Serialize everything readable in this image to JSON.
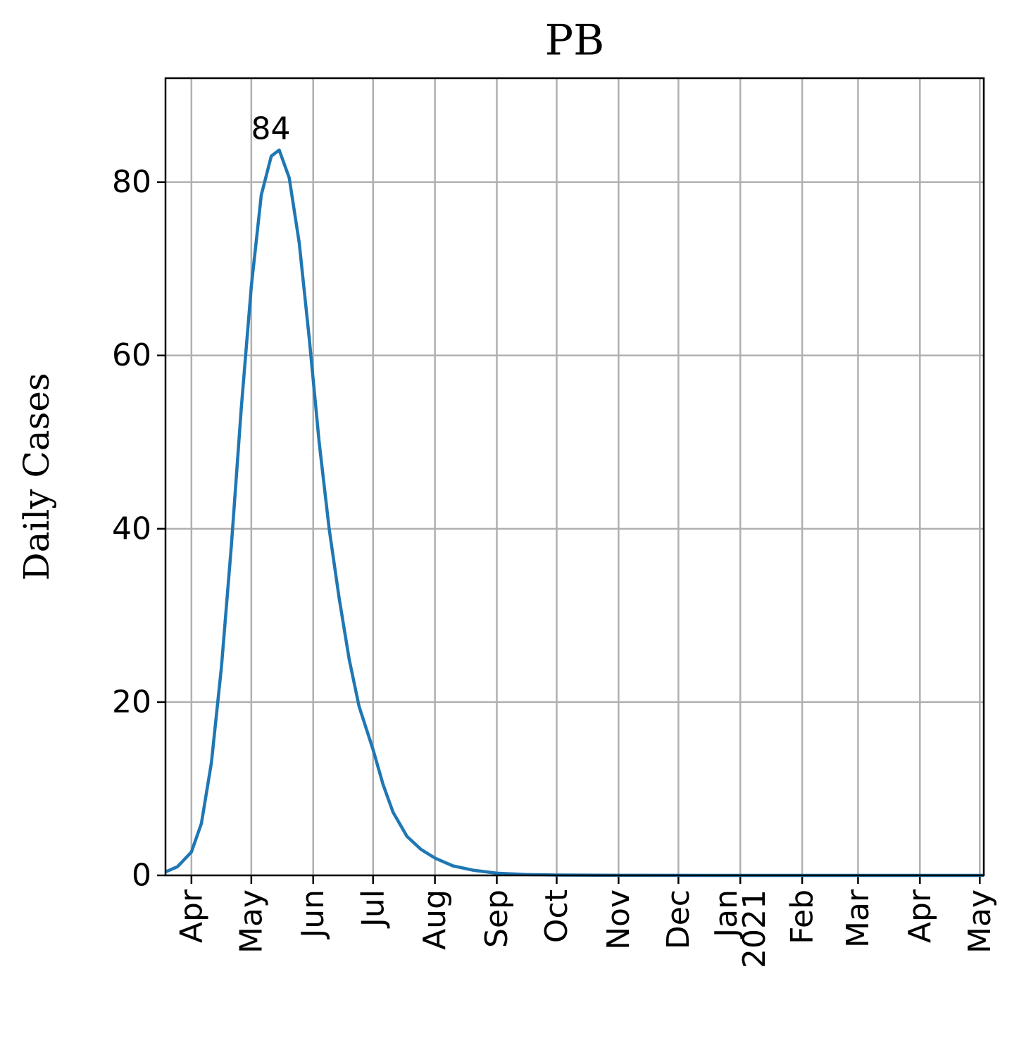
{
  "chart_data": {
    "type": "line",
    "title": "PB",
    "ylabel": "Daily Cases",
    "x": [
      "2020-03-19",
      "2020-03-25",
      "2020-04-01",
      "2020-04-06",
      "2020-04-11",
      "2020-04-16",
      "2020-04-21",
      "2020-04-26",
      "2020-05-01",
      "2020-05-06",
      "2020-05-11",
      "2020-05-15",
      "2020-05-20",
      "2020-05-25",
      "2020-05-30",
      "2020-06-04",
      "2020-06-09",
      "2020-06-14",
      "2020-06-19",
      "2020-06-24",
      "2020-07-01",
      "2020-07-06",
      "2020-07-11",
      "2020-07-18",
      "2020-07-25",
      "2020-08-01",
      "2020-08-10",
      "2020-08-20",
      "2020-09-01",
      "2020-09-15",
      "2020-10-01",
      "2020-11-01",
      "2021-01-01",
      "2021-05-03"
    ],
    "series": [
      {
        "name": "Daily Cases",
        "color": "#1f77b4",
        "values": [
          0.4,
          1.0,
          2.7,
          6.0,
          13,
          24,
          38,
          54,
          68,
          78.5,
          83,
          83.7,
          80.5,
          73,
          62,
          50,
          40,
          32,
          25,
          19.5,
          14.5,
          10.5,
          7.3,
          4.5,
          3.0,
          2.0,
          1.1,
          0.6,
          0.25,
          0.1,
          0.04,
          0.01,
          0,
          0
        ]
      }
    ],
    "annotations": [
      {
        "x": "2020-05-15",
        "value": 84
      }
    ],
    "xlim": [
      "2020-03-19",
      "2021-05-03"
    ],
    "xticks": [
      {
        "value": "2020-04-01",
        "label": "Apr"
      },
      {
        "value": "2020-05-01",
        "label": "May"
      },
      {
        "value": "2020-06-01",
        "label": "Jun"
      },
      {
        "value": "2020-07-01",
        "label": "Jul"
      },
      {
        "value": "2020-08-01",
        "label": "Aug"
      },
      {
        "value": "2020-09-01",
        "label": "Sep"
      },
      {
        "value": "2020-10-01",
        "label": "Oct"
      },
      {
        "value": "2020-11-01",
        "label": "Nov"
      },
      {
        "value": "2020-12-01",
        "label": "Dec"
      },
      {
        "value": "2021-01-01",
        "label": "Jan\n2021"
      },
      {
        "value": "2021-02-01",
        "label": "Feb"
      },
      {
        "value": "2021-03-01",
        "label": "Mar"
      },
      {
        "value": "2021-04-01",
        "label": "Apr"
      },
      {
        "value": "2021-05-01",
        "label": "May"
      }
    ],
    "ylim": [
      0,
      92
    ],
    "yticks": [
      0,
      20,
      40,
      60,
      80
    ],
    "grid": true
  }
}
